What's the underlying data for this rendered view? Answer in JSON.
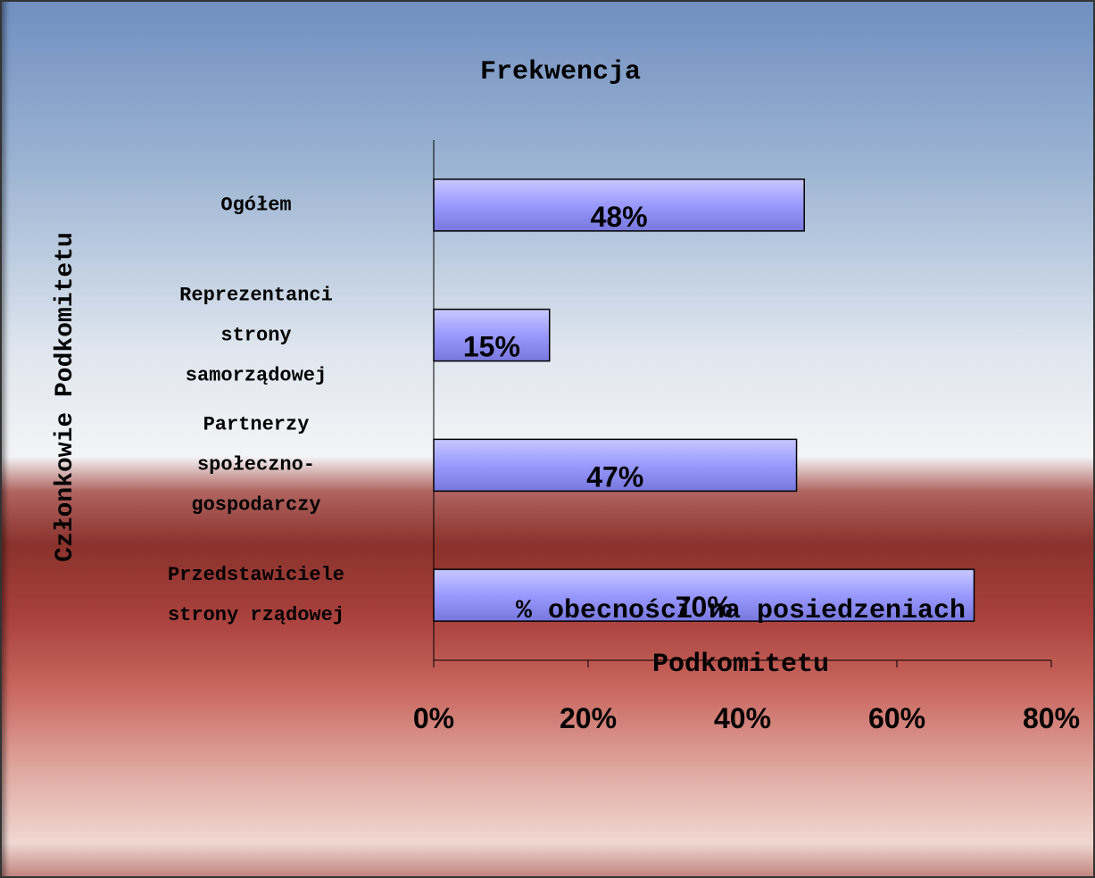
{
  "chart_data": {
    "type": "hbar",
    "title": "Frekwencja",
    "categories": [
      "Ogółem",
      "Reprezentanci\nstrony\nsamorządowej",
      "Partnerzy\nspołeczno-\ngospodarczy",
      "Przedstawiciele\nstrony rządowej"
    ],
    "values": [
      48,
      15,
      47,
      70
    ],
    "value_labels": [
      "48%",
      "15%",
      "47%",
      "70%"
    ],
    "color": "#9999ff",
    "xlim": [
      0,
      80
    ],
    "xticks": [
      {
        "value": 0,
        "label": "0%"
      },
      {
        "value": 20,
        "label": "20%"
      },
      {
        "value": 40,
        "label": "40%"
      },
      {
        "value": 60,
        "label": "60%"
      },
      {
        "value": 80,
        "label": "80%"
      }
    ],
    "xlabel": "% obecności na posiedzeniach\nPodkomitetu",
    "ylabel": "Członkowie Podkomitetu"
  }
}
